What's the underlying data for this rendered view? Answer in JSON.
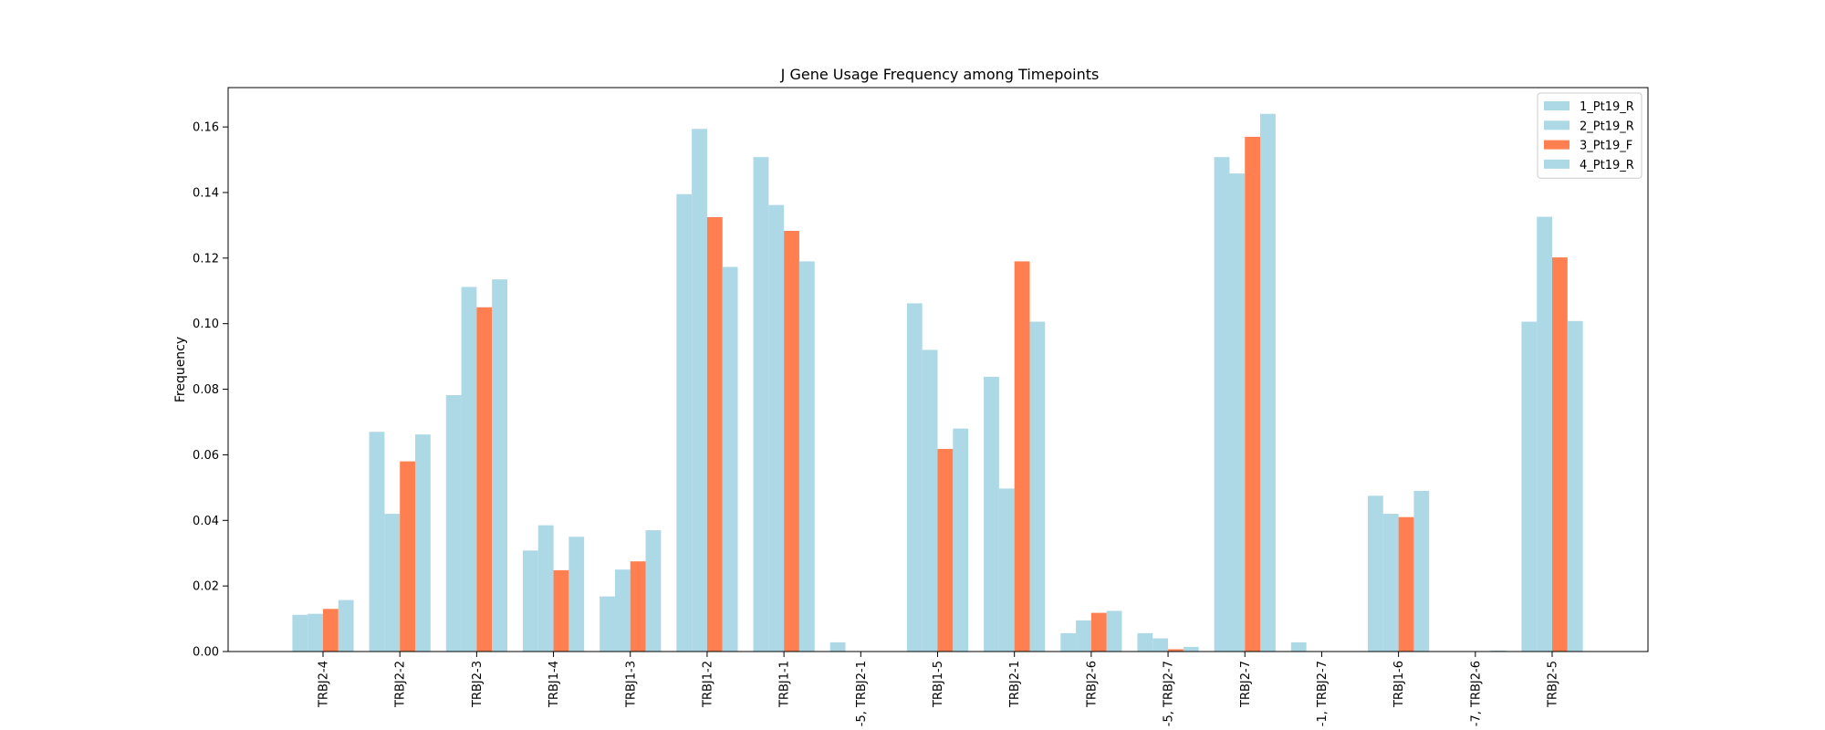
{
  "chart_data": {
    "type": "bar",
    "title": "J Gene Usage Frequency among Timepoints",
    "xlabel": "",
    "ylabel": "Frequency",
    "ylim": [
      0,
      0.172
    ],
    "yticks": [
      "0.00",
      "0.02",
      "0.04",
      "0.06",
      "0.08",
      "0.10",
      "0.12",
      "0.14",
      "0.16"
    ],
    "ytick_values": [
      0,
      0.02,
      0.04,
      0.06,
      0.08,
      0.1,
      0.12,
      0.14,
      0.16
    ],
    "legend_position": "top-right",
    "grid": false,
    "categories": [
      "TRBJ2-4",
      "TRBJ2-2",
      "TRBJ2-3",
      "TRBJ1-4",
      "TRBJ1-3",
      "TRBJ1-2",
      "TRBJ1-1",
      "-5, TRBJ2-1",
      "TRBJ1-5",
      "TRBJ2-1",
      "TRBJ2-6",
      "-5, TRBJ2-7",
      "TRBJ2-7",
      "-1, TRBJ2-7",
      "TRBJ1-6",
      "-7, TRBJ2-6",
      "TRBJ2-5"
    ],
    "series": [
      {
        "name": "1_Pt19_R",
        "color": "#add8e6",
        "values": [
          0.0112,
          0.067,
          0.0782,
          0.0308,
          0.0168,
          0.1395,
          0.1508,
          0.0028,
          0.1062,
          0.0838,
          0.0056,
          0.0056,
          0.1508,
          0.0028,
          0.0475,
          0.0,
          0.1006
        ]
      },
      {
        "name": "2_Pt19_R",
        "color": "#add8e6",
        "values": [
          0.0115,
          0.042,
          0.1112,
          0.0385,
          0.025,
          0.1594,
          0.1362,
          0.0,
          0.092,
          0.0497,
          0.0095,
          0.004,
          0.1458,
          0.0,
          0.042,
          0.0,
          0.1326
        ]
      },
      {
        "name": "3_Pt19_F",
        "color": "#ff7f50",
        "values": [
          0.013,
          0.058,
          0.105,
          0.0248,
          0.0275,
          0.1325,
          0.1283,
          0.0,
          0.0618,
          0.119,
          0.0118,
          0.0007,
          0.157,
          0.0,
          0.041,
          0.0,
          0.1202
        ]
      },
      {
        "name": "4_Pt19_R",
        "color": "#add8e6",
        "values": [
          0.0157,
          0.0662,
          0.1135,
          0.035,
          0.037,
          0.1173,
          0.119,
          0.0,
          0.068,
          0.1006,
          0.0124,
          0.0014,
          0.164,
          0.0,
          0.049,
          0.0003,
          0.1008
        ]
      }
    ]
  }
}
